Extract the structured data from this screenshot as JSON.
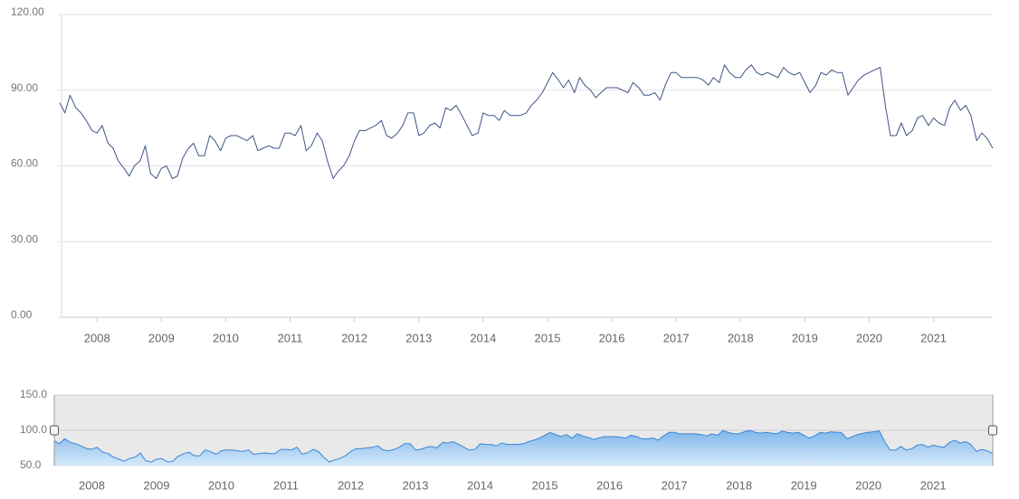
{
  "chart_data": {
    "type": "line",
    "color": "#3d5585",
    "x": [
      2007.42,
      2007.5,
      2007.58,
      2007.67,
      2007.75,
      2007.83,
      2007.92,
      2008.0,
      2008.08,
      2008.17,
      2008.25,
      2008.33,
      2008.42,
      2008.5,
      2008.58,
      2008.67,
      2008.75,
      2008.83,
      2008.92,
      2009.0,
      2009.08,
      2009.17,
      2009.25,
      2009.33,
      2009.42,
      2009.5,
      2009.58,
      2009.67,
      2009.75,
      2009.83,
      2009.92,
      2010.0,
      2010.08,
      2010.17,
      2010.25,
      2010.33,
      2010.42,
      2010.5,
      2010.58,
      2010.67,
      2010.75,
      2010.83,
      2010.92,
      2011.0,
      2011.08,
      2011.17,
      2011.25,
      2011.33,
      2011.42,
      2011.5,
      2011.58,
      2011.67,
      2011.75,
      2011.83,
      2011.92,
      2012.0,
      2012.08,
      2012.17,
      2012.25,
      2012.33,
      2012.42,
      2012.5,
      2012.58,
      2012.67,
      2012.75,
      2012.83,
      2012.92,
      2013.0,
      2013.08,
      2013.17,
      2013.25,
      2013.33,
      2013.42,
      2013.5,
      2013.58,
      2013.67,
      2013.75,
      2013.83,
      2013.92,
      2014.0,
      2014.08,
      2014.17,
      2014.25,
      2014.33,
      2014.42,
      2014.5,
      2014.58,
      2014.67,
      2014.75,
      2014.83,
      2014.92,
      2015.0,
      2015.08,
      2015.17,
      2015.25,
      2015.33,
      2015.42,
      2015.5,
      2015.58,
      2015.67,
      2015.75,
      2015.83,
      2015.92,
      2016.0,
      2016.08,
      2016.17,
      2016.25,
      2016.33,
      2016.42,
      2016.5,
      2016.58,
      2016.67,
      2016.75,
      2016.83,
      2016.92,
      2017.0,
      2017.08,
      2017.17,
      2017.25,
      2017.33,
      2017.42,
      2017.5,
      2017.58,
      2017.67,
      2017.75,
      2017.83,
      2017.92,
      2018.0,
      2018.08,
      2018.17,
      2018.25,
      2018.33,
      2018.42,
      2018.5,
      2018.58,
      2018.67,
      2018.75,
      2018.83,
      2018.92,
      2019.0,
      2019.08,
      2019.17,
      2019.25,
      2019.33,
      2019.42,
      2019.5,
      2019.58,
      2019.67,
      2019.75,
      2019.83,
      2019.92,
      2020.0,
      2020.08,
      2020.17,
      2020.25,
      2020.33,
      2020.42,
      2020.5,
      2020.58,
      2020.67,
      2020.75,
      2020.83,
      2020.92,
      2021.0,
      2021.08,
      2021.17,
      2021.25,
      2021.33,
      2021.42,
      2021.5,
      2021.58,
      2021.67,
      2021.75,
      2021.83,
      2021.92
    ],
    "values": [
      85,
      81,
      88,
      83,
      81,
      78,
      74,
      73,
      76,
      69,
      67,
      62,
      59,
      56,
      60,
      62,
      68,
      57,
      55,
      59,
      60,
      55,
      56,
      63,
      67,
      69,
      64,
      64,
      72,
      70,
      66,
      71,
      72,
      72,
      71,
      70,
      72,
      66,
      67,
      68,
      67,
      67,
      73,
      73,
      72,
      76,
      66,
      68,
      73,
      70,
      62,
      55,
      58,
      60,
      64,
      70,
      74,
      74,
      75,
      76,
      78,
      72,
      71,
      73,
      76,
      81,
      81,
      72,
      73,
      76,
      77,
      75,
      83,
      82,
      84,
      80,
      76,
      72,
      73,
      81,
      80,
      80,
      78,
      82,
      80,
      80,
      80,
      81,
      84,
      86,
      89,
      93,
      97,
      94,
      91,
      94,
      89,
      95,
      92,
      90,
      87,
      89,
      91,
      91,
      91,
      90,
      89,
      93,
      91,
      88,
      88,
      89,
      86,
      92,
      97,
      97,
      95,
      95,
      95,
      95,
      94,
      92,
      95,
      93,
      100,
      97,
      95,
      95,
      98,
      100,
      97,
      96,
      97,
      96,
      95,
      99,
      97,
      96,
      97,
      93,
      89,
      92,
      97,
      96,
      98,
      97,
      97,
      88,
      91,
      94,
      96,
      97,
      98,
      99,
      84,
      72,
      72,
      77,
      72,
      74,
      79,
      80,
      76,
      79,
      77,
      76,
      83,
      86,
      82,
      84,
      80,
      70,
      73,
      71,
      67
    ],
    "xlim": [
      2007.42,
      2021.92
    ],
    "xticks": [
      2008,
      2009,
      2010,
      2011,
      2012,
      2013,
      2014,
      2015,
      2016,
      2017,
      2018,
      2019,
      2020,
      2021
    ],
    "ylim": [
      0,
      120
    ],
    "yticks": [
      {
        "value": 0,
        "label": "0.00"
      },
      {
        "value": 30,
        "label": "30.00"
      },
      {
        "value": 60,
        "label": "60.00"
      },
      {
        "value": 90,
        "label": "90.00"
      },
      {
        "value": 120,
        "label": "120.00"
      }
    ],
    "grid": true,
    "navigator": {
      "ylim": [
        50,
        150
      ],
      "yticks": [
        {
          "value": 50,
          "label": "50.0"
        },
        {
          "value": 100,
          "label": "100.0"
        },
        {
          "value": 150,
          "label": "150.0"
        }
      ]
    }
  }
}
